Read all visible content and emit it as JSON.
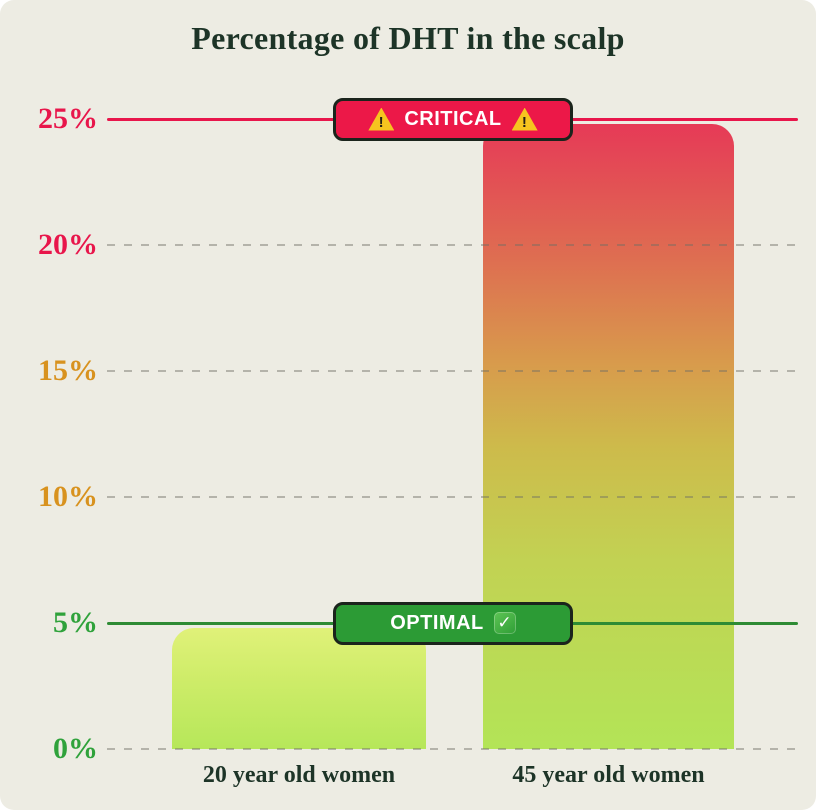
{
  "title": "Percentage of DHT in the scalp",
  "chart_data": {
    "type": "bar",
    "title": "Percentage of DHT in the scalp",
    "categories": [
      "20 year old women",
      "45 year old women"
    ],
    "values": [
      4.8,
      24.8
    ],
    "unit": "%",
    "ylim": [
      0,
      25
    ],
    "grid": "horizontal dashed at 0,10,15,20",
    "legend": "none",
    "yticks": [
      {
        "label": "25%",
        "value": 25,
        "color": "#e8164b",
        "gridline": "none"
      },
      {
        "label": "20%",
        "value": 20,
        "color": "#e8164b",
        "gridline": "dashed"
      },
      {
        "label": "15%",
        "value": 15,
        "color": "#d8921e",
        "gridline": "dashed"
      },
      {
        "label": "10%",
        "value": 10,
        "color": "#d8921e",
        "gridline": "dashed"
      },
      {
        "label": "5%",
        "value": 5,
        "color": "#2fa23b",
        "gridline": "none"
      },
      {
        "label": "0%",
        "value": 0,
        "color": "#2fa23b",
        "gridline": "dashed"
      }
    ],
    "reference_lines": [
      {
        "label": "CRITICAL",
        "value": 25,
        "line_color": "#e8164b",
        "badge_bg": "#ec1848",
        "icon": "warning-triangle"
      },
      {
        "label": "OPTIMAL",
        "value": 5,
        "line_color": "#2e8b34",
        "badge_bg": "#2c9b35",
        "icon": "check-mark"
      }
    ]
  },
  "colors": {
    "background": "#edece3",
    "title_text": "#1d3427",
    "critical_red": "#e8164b",
    "warning_orange": "#d8921e",
    "optimal_green": "#2fa23b",
    "badge_border": "#1b241c",
    "warning_icon_yellow": "#f6c41f",
    "bar_left_top": "#e0f179",
    "bar_left_bottom": "#b6e75a",
    "bar_right_top": "#e63a57",
    "bar_right_bottom": "#b3e457"
  }
}
